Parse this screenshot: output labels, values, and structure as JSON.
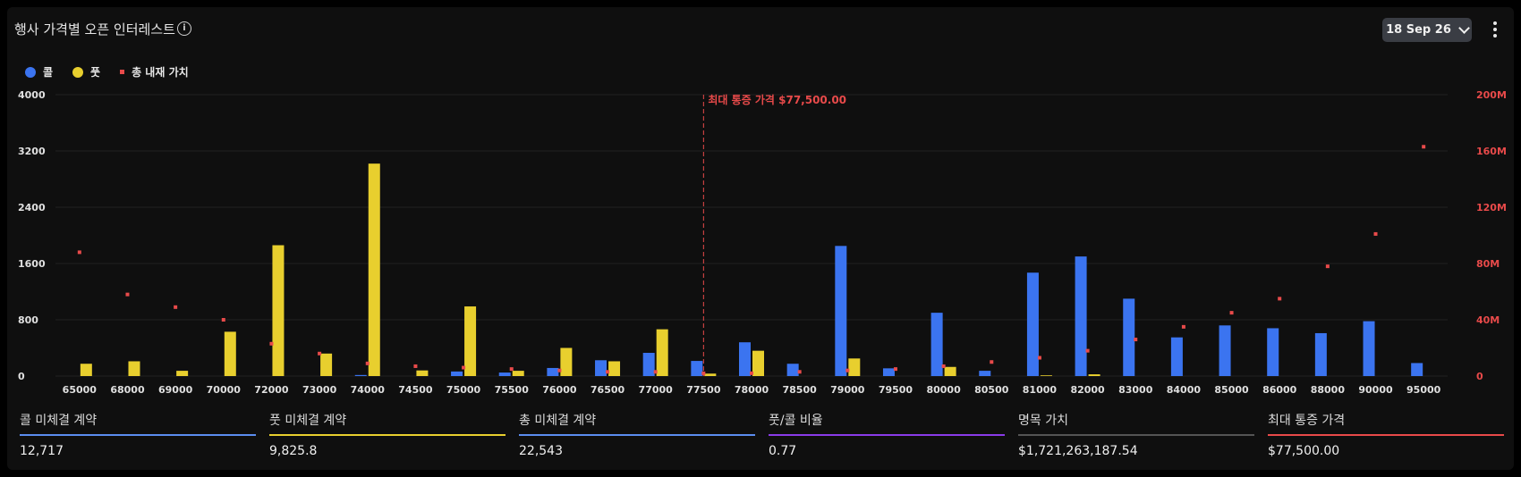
{
  "header": {
    "title": "행사 가격별 오픈 인터레스트",
    "info_icon": "info-icon",
    "date_label": "18 Sep 26",
    "menu_icon": "more-vertical-icon"
  },
  "legend": [
    {
      "label": "콜",
      "color": "#3b74f0"
    },
    {
      "label": "풋",
      "color": "#e8cf2e"
    },
    {
      "label": "총 내재 가치",
      "color": "#e84a4a"
    }
  ],
  "chart_data": {
    "type": "bar",
    "categories": [
      "65000",
      "68000",
      "69000",
      "70000",
      "72000",
      "73000",
      "74000",
      "74500",
      "75000",
      "75500",
      "76000",
      "76500",
      "77000",
      "77500",
      "78000",
      "78500",
      "79000",
      "79500",
      "80000",
      "80500",
      "81000",
      "82000",
      "83000",
      "84000",
      "85000",
      "86000",
      "88000",
      "90000",
      "95000"
    ],
    "series": [
      {
        "name": "콜",
        "axis": "left",
        "color": "#3b74f0",
        "values": [
          0,
          0,
          0,
          0,
          0,
          0,
          15,
          0,
          65,
          50,
          115,
          225,
          330,
          215,
          480,
          175,
          1850,
          110,
          900,
          75,
          1470,
          1700,
          1100,
          550,
          720,
          680,
          610,
          780,
          185
        ]
      },
      {
        "name": "풋",
        "axis": "left",
        "color": "#e8cf2e",
        "values": [
          175,
          210,
          75,
          630,
          1860,
          320,
          3020,
          80,
          990,
          75,
          400,
          210,
          665,
          35,
          360,
          0,
          250,
          0,
          130,
          0,
          10,
          25,
          0,
          0,
          0,
          0,
          0,
          0,
          0
        ]
      },
      {
        "name": "총 내재 가치",
        "axis": "right",
        "type": "scatter",
        "color": "#e84a4a",
        "values": [
          88,
          58,
          49,
          40,
          23,
          16,
          9,
          7,
          6,
          5,
          4,
          3,
          3,
          2,
          2,
          3,
          4,
          5,
          7,
          10,
          13,
          18,
          26,
          35,
          45,
          55,
          78,
          101,
          163
        ]
      }
    ],
    "y_left": {
      "min": 0,
      "max": 4000,
      "ticks": [
        "0",
        "800",
        "1600",
        "2400",
        "3200",
        "4000"
      ]
    },
    "y_right": {
      "min": 0,
      "max": 200,
      "ticks": [
        "0",
        "40M",
        "80M",
        "120M",
        "160M",
        "200M"
      ]
    },
    "marker": {
      "category": "77500",
      "label": "최대 통증 가격 $77,500.00"
    },
    "grid": true
  },
  "stats": [
    {
      "label": "콜 미체결 계약",
      "value": "12,717",
      "color": "#5b8def"
    },
    {
      "label": "풋 미체결 계약",
      "value": "9,825.8",
      "color": "#e8cf2e"
    },
    {
      "label": "총 미체결 계약",
      "value": "22,543",
      "color": "#5b8def"
    },
    {
      "label": "풋/콜 비율",
      "value": "0.77",
      "color": "#8a3be8"
    },
    {
      "label": "명목 가치",
      "value": "$1,721,263,187.54",
      "color": "#555555"
    },
    {
      "label": "최대 통증 가격",
      "value": "$77,500.00",
      "color": "#e84a4a"
    }
  ]
}
